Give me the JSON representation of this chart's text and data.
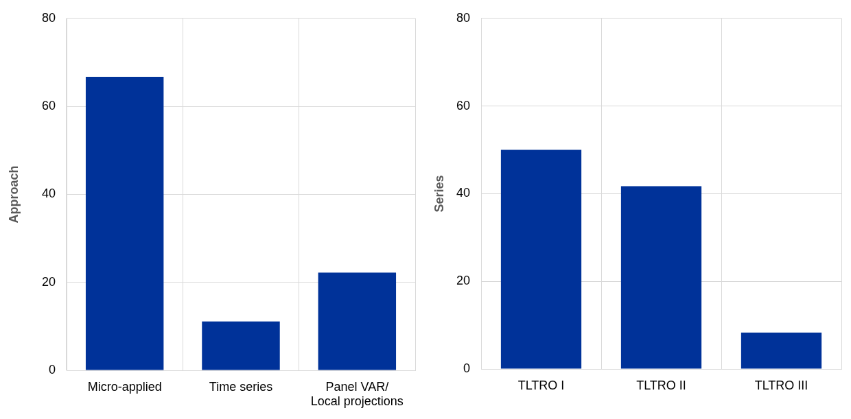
{
  "chart_data": [
    {
      "type": "bar",
      "ylabel": "Approach",
      "categories": [
        "Micro-applied",
        "Time series",
        "Panel VAR/\nLocal projections"
      ],
      "values": [
        66.7,
        11.1,
        22.2
      ],
      "color": "#003299",
      "ylim": [
        0,
        80
      ],
      "yticks": [
        0,
        20,
        40,
        60,
        80
      ],
      "grid": true
    },
    {
      "type": "bar",
      "ylabel": "Series",
      "categories": [
        "TLTRO I",
        "TLTRO II",
        "TLTRO III"
      ],
      "values": [
        50,
        41.7,
        8.3
      ],
      "color": "#003299",
      "ylim": [
        0,
        80
      ],
      "yticks": [
        0,
        20,
        40,
        60,
        80
      ],
      "grid": true
    }
  ]
}
